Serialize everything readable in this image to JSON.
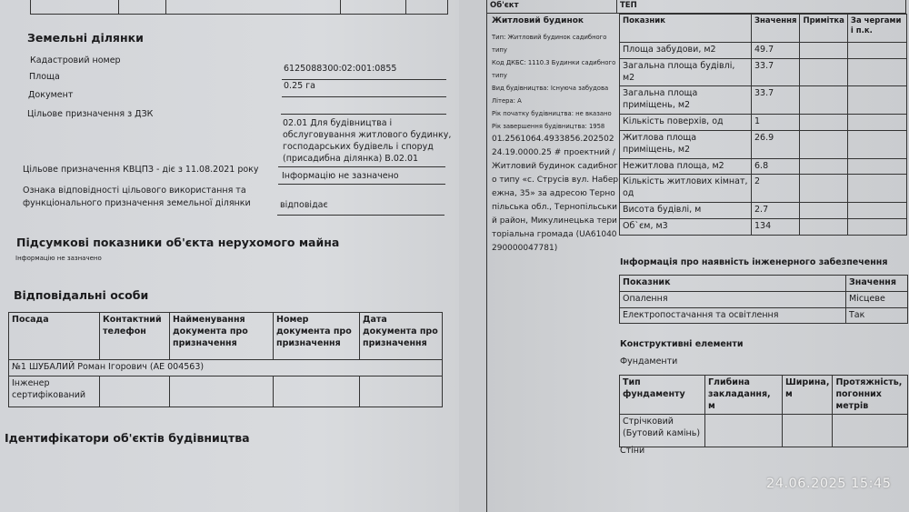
{
  "land": {
    "title": "Земельні ділянки",
    "cadastral_label": "Кадастровий номер",
    "cadastral_value": "6125088300:02:001:0855",
    "area_label": "Площа",
    "area_value": "0.25 га",
    "document_label": "Документ",
    "purpose_dzk_label": "Цільове призначення з ДЗК",
    "purpose_dzk_value": [
      "02.01 Для будівництва і",
      "обслуговування житлового будинку,",
      "господарських будівель і споруд",
      "(присадибна ділянка) В.02.01"
    ],
    "purpose_kvcpz_label": "Цільове призначення КВЦПЗ - діє з 11.08.2021 року",
    "purpose_kvcpz_value": "Інформацію не зазначено",
    "conformity_label": [
      "Ознака відповідності цільового використання та",
      "функціонального призначення земельної ділянки"
    ],
    "conformity_value": "відповідає"
  },
  "summary": {
    "title": "Підсумкові показники об'єкта нерухомого майна",
    "note": "Інформацію не зазначено"
  },
  "responsible": {
    "title": "Відповідальні особи",
    "headers": [
      "Посада",
      "Контактний телефон",
      "Найменування документа про призначення",
      "Номер документа про призначення",
      "Дата документа про призначення"
    ],
    "person": "№1 ШУБАЛИЙ Роман Ігорович (АЕ 004563)",
    "role": "Інженер сертифікований"
  },
  "identifiers_title": "Ідентифікатори об'єктів будівництва",
  "object": {
    "header_left": "Об'єкт",
    "header_right": "ТЕП",
    "name": "Житловий будинок",
    "details": [
      "Тип: Житловий будинок садибного типу",
      "Код ДКБС: 1110.3 Будинки садибного типу",
      "Вид будівництва: Існуюча забудова",
      "Літера: А",
      "Рік початку будівництва: не вказано",
      "Рік завершення будівництва: 1958"
    ],
    "description": "01.2561064.4933856.20250224.19.0000.25 # проектний / Житловий будинок садибного типу «с. Струсів вул. Набережна, 35» за адресою Тернопільська обл., Тернопільський район, Микулинецька територіальна громада (UA61040290000047781)"
  },
  "tep": {
    "headers": [
      "Показник",
      "Значення",
      "Примітка",
      "За чергами і п.к."
    ],
    "rows": [
      [
        "Площа забудови, м2",
        "49.7"
      ],
      [
        "Загальна площа будівлі, м2",
        "33.7"
      ],
      [
        "Загальна площа приміщень, м2",
        "33.7"
      ],
      [
        "Кількість поверхів, од",
        "1"
      ],
      [
        "Житлова площа приміщень, м2",
        "26.9"
      ],
      [
        "Нежитлова площа, м2",
        "6.8"
      ],
      [
        "Кількість житлових кімнат, од",
        "2"
      ],
      [
        "Висота будівлі, м",
        "2.7"
      ],
      [
        "Об`єм, м3",
        "134"
      ]
    ]
  },
  "engineering": {
    "title": "Інформація про наявність інженерного забезпечення",
    "headers": [
      "Показник",
      "Значення"
    ],
    "rows": [
      [
        "Опалення",
        "Місцеве"
      ],
      [
        "Електропостачання та освітлення",
        "Так"
      ]
    ]
  },
  "construct": {
    "title": "Конструктивні елементи",
    "foundations_title": "Фундаменти",
    "headers": [
      "Тип фундаменту",
      "Глибина закладання, м",
      "Ширина, м",
      "Протяжність, погонних метрів"
    ],
    "row": [
      "Стрічковий (Бутовий камінь)",
      "",
      "",
      ""
    ],
    "walls_title": "Стіни"
  },
  "timestamp": "24.06.2025 15:45"
}
